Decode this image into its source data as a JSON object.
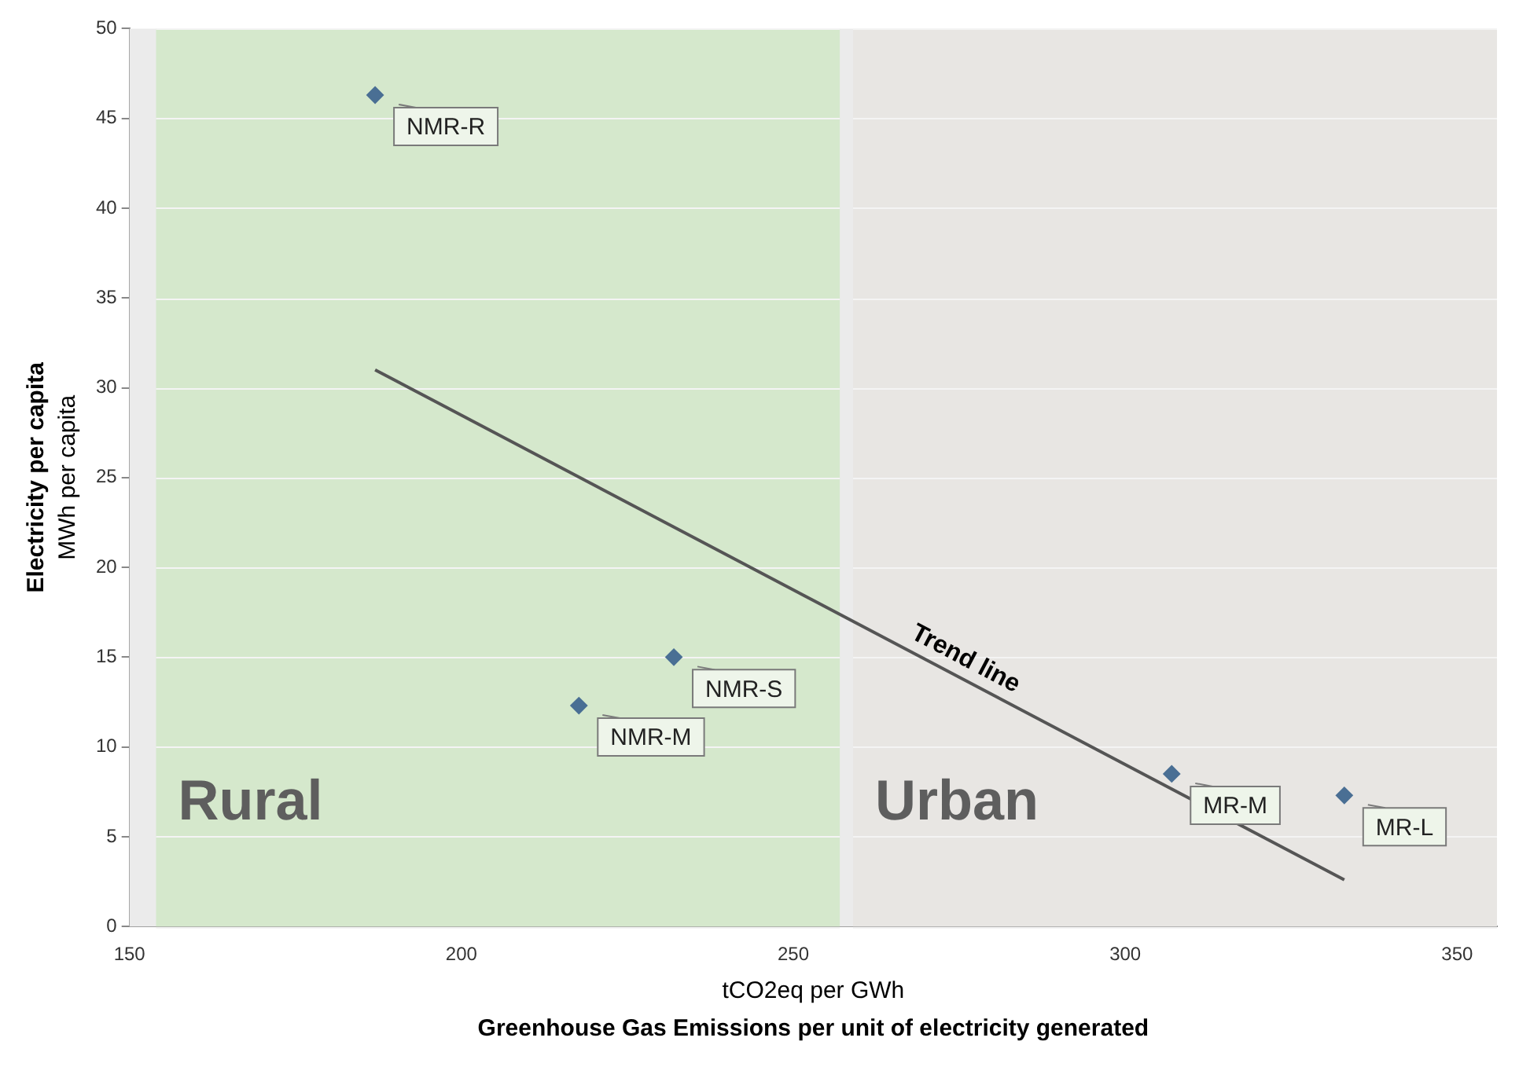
{
  "chart_data": {
    "type": "scatter",
    "xlabel": "tCO2eq per GWh\nGreenhouse Gas Emissions per unit of electricity generated",
    "ylabel": "Electricity per capita\nMWh per capita",
    "x": [
      187,
      232,
      217.7,
      307,
      333
    ],
    "series": [
      {
        "color": "#4a6f94",
        "marker": "diamond",
        "values": [
          46.3,
          15,
          12.3,
          8.5,
          7.3
        ]
      },
      {
        "name": "Trend line",
        "type": "line",
        "marker": "none",
        "color": "#555555",
        "x": [
          187,
          333
        ],
        "values": [
          31,
          2.6
        ]
      }
    ],
    "xlim": [
      150,
      356
    ],
    "ylim": [
      0,
      50
    ],
    "xticks": [
      150,
      200,
      250,
      300,
      350
    ],
    "yticks": [
      0,
      5,
      10,
      15,
      20,
      25,
      30,
      35,
      40,
      45,
      50
    ],
    "grid": "y",
    "legend": false,
    "bands": [
      {
        "axis": "x",
        "from": 154,
        "to": 257,
        "label": "Rural",
        "color": "#d5e8cc"
      },
      {
        "axis": "x",
        "from": 259,
        "to": 356,
        "label": "Urban",
        "color": "#e8e6e3"
      }
    ],
    "annotations": [
      {
        "text": "NMR-R",
        "x": 187,
        "y": 46.3
      },
      {
        "text": "NMR-S",
        "x": 232,
        "y": 15
      },
      {
        "text": "NMR-M",
        "x": 217.7,
        "y": 12.3
      },
      {
        "text": "MR-M",
        "x": 307,
        "y": 8.5
      },
      {
        "text": "MR-L",
        "x": 333,
        "y": 7.3
      }
    ]
  }
}
